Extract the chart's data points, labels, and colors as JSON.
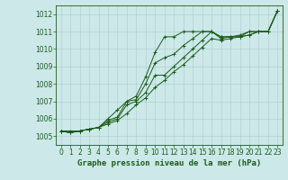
{
  "line1": [
    1005.3,
    1005.3,
    1005.3,
    1005.4,
    1005.5,
    1006.0,
    1006.5,
    1007.0,
    1007.3,
    1008.4,
    1009.8,
    1010.7,
    1010.7,
    1011.0,
    1011.0,
    1011.0,
    1011.0,
    1010.7,
    1010.7,
    1010.7,
    1011.0,
    1011.0,
    1011.0,
    1012.2
  ],
  "line2": [
    1005.3,
    1005.2,
    1005.3,
    1005.4,
    1005.5,
    1005.9,
    1006.1,
    1007.0,
    1007.1,
    1008.0,
    1009.2,
    1009.5,
    1009.7,
    1010.2,
    1010.6,
    1011.0,
    1011.0,
    1010.7,
    1010.7,
    1010.8,
    1011.0,
    1011.0,
    1011.0,
    1012.2
  ],
  "line3": [
    1005.3,
    1005.2,
    1005.3,
    1005.4,
    1005.5,
    1005.8,
    1006.0,
    1006.8,
    1007.0,
    1007.5,
    1008.5,
    1008.5,
    1009.0,
    1009.5,
    1010.0,
    1010.5,
    1011.0,
    1010.6,
    1010.7,
    1010.7,
    1010.8,
    1011.0,
    1011.0,
    1012.2
  ],
  "line4": [
    1005.3,
    1005.2,
    1005.3,
    1005.4,
    1005.5,
    1005.7,
    1005.9,
    1006.3,
    1006.8,
    1007.2,
    1007.8,
    1008.2,
    1008.7,
    1009.1,
    1009.6,
    1010.1,
    1010.6,
    1010.5,
    1010.6,
    1010.7,
    1010.8,
    1011.0,
    1011.0,
    1012.2
  ],
  "x": [
    0,
    1,
    2,
    3,
    4,
    5,
    6,
    7,
    8,
    9,
    10,
    11,
    12,
    13,
    14,
    15,
    16,
    17,
    18,
    19,
    20,
    21,
    22,
    23
  ],
  "ylim": [
    1004.5,
    1012.5
  ],
  "xlim": [
    -0.5,
    23.5
  ],
  "yticks": [
    1005,
    1006,
    1007,
    1008,
    1009,
    1010,
    1011,
    1012
  ],
  "xticks": [
    0,
    1,
    2,
    3,
    4,
    5,
    6,
    7,
    8,
    9,
    10,
    11,
    12,
    13,
    14,
    15,
    16,
    17,
    18,
    19,
    20,
    21,
    22,
    23
  ],
  "line_color": "#1a5c1a",
  "bg_color": "#cce8e8",
  "grid_color": "#aacccc",
  "xlabel": "Graphe pression niveau de la mer (hPa)",
  "xlabel_fontsize": 6.5,
  "tick_fontsize": 5.5
}
